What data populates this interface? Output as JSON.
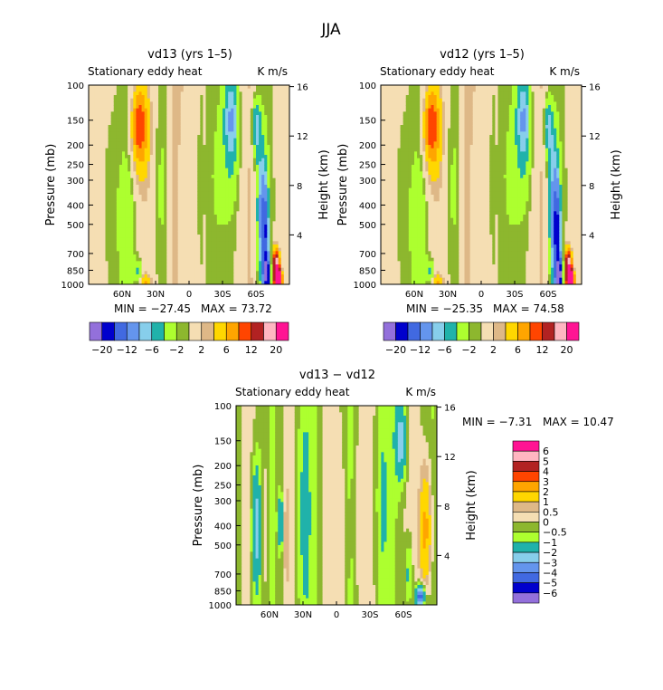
{
  "figure_title": "JJA",
  "colors": {
    "cmap": [
      "#9370DB",
      "#0000CD",
      "#4169E1",
      "#6495ED",
      "#87CEEB",
      "#20B2AA",
      "#ADFF2F",
      "#8DB72E",
      "#F5DEB3",
      "#DEB887",
      "#FFD700",
      "#FFA500",
      "#FF4500",
      "#B22222",
      "#FFB6C1",
      "#FF1493"
    ],
    "diff_cmap": [
      "#9370DB",
      "#0000CD",
      "#4169E1",
      "#6495ED",
      "#87CEEB",
      "#20B2AA",
      "#ADFF2F",
      "#8DB72E",
      "#F5DEB3",
      "#DEB887",
      "#FFD700",
      "#FFA500",
      "#FF4500",
      "#B22222",
      "#FFB6C1",
      "#FF1493"
    ]
  },
  "chart_data": [
    {
      "type": "heatmap",
      "title": "vd13 (yrs 1–5)",
      "subtitle_left": "Stationary eddy heat",
      "subtitle_right": "K m/s",
      "ylabel": "Pressure (mb)",
      "ylabel_right": "Height (km)",
      "pressure_ticks": [
        100,
        150,
        200,
        250,
        300,
        400,
        500,
        700,
        850,
        1000
      ],
      "height_ticks": [
        4,
        8,
        12,
        16
      ],
      "x_ticks": [
        [
          "60N",
          60
        ],
        [
          "30N",
          30
        ],
        [
          "0",
          0
        ],
        [
          "30S",
          -30
        ],
        [
          "60S",
          -60
        ]
      ],
      "xlim": [
        90,
        -90
      ],
      "min_text": "MIN = −27.45",
      "max_text": "MAX =  73.72",
      "min": -27.45,
      "max": 73.72,
      "levels": [
        -20,
        -16,
        -12,
        -8,
        -6,
        -4,
        -2,
        -1,
        1,
        2,
        4,
        6,
        8,
        12,
        16,
        20
      ],
      "colorbar_labels": [
        [
          "−20",
          1
        ],
        [
          "−12",
          3
        ],
        [
          "−6",
          5
        ],
        [
          "−2",
          7
        ],
        [
          "2",
          9
        ],
        [
          "6",
          11
        ],
        [
          "12",
          13
        ],
        [
          "20",
          15
        ]
      ],
      "features": [
        {
          "lat": 45,
          "p": 160,
          "v": 6,
          "rl": 7,
          "rp": 0.45
        },
        {
          "lat": 45,
          "p": 180,
          "v": 2.5,
          "rl": 12,
          "rp": 0.75
        },
        {
          "lat": 70,
          "p": 400,
          "v": -2,
          "rl": 8,
          "rp": 1.4
        },
        {
          "lat": 55,
          "p": 550,
          "v": -2,
          "rl": 6,
          "rp": 1.2
        },
        {
          "lat": 25,
          "p": 300,
          "v": -1.8,
          "rl": 7,
          "rp": 1.4
        },
        {
          "lat": 5,
          "p": 500,
          "v": -1.5,
          "rl": 6,
          "rp": 1.6
        },
        {
          "lat": -25,
          "p": 300,
          "v": -1.8,
          "rl": 9,
          "rp": 1.6
        },
        {
          "lat": -38,
          "p": 200,
          "v": -3,
          "rl": 8,
          "rp": 0.7
        },
        {
          "lat": -38,
          "p": 140,
          "v": -5,
          "rl": 6,
          "rp": 0.45
        },
        {
          "lat": -60,
          "p": 160,
          "v": -7,
          "rl": 4,
          "rp": 0.35
        },
        {
          "lat": -65,
          "p": 420,
          "v": -8,
          "rl": 5,
          "rp": 0.9
        },
        {
          "lat": -68,
          "p": 550,
          "v": -12,
          "rl": 3,
          "rp": 0.5
        },
        {
          "lat": -70,
          "p": 900,
          "v": -20,
          "rl": 3,
          "rp": 0.2
        },
        {
          "lat": -78,
          "p": 800,
          "v": 15,
          "rl": 3,
          "rp": 0.2
        },
        {
          "lat": -80,
          "p": 950,
          "v": 25,
          "rl": 3,
          "rp": 0.12
        },
        {
          "lat": 40,
          "p": 980,
          "v": 4,
          "rl": 6,
          "rp": 0.1
        },
        {
          "lat": 45,
          "p": 870,
          "v": -5,
          "rl": 3,
          "rp": 0.12
        }
      ]
    },
    {
      "type": "heatmap",
      "title": "vd12 (yrs 1–5)",
      "subtitle_left": "Stationary eddy heat",
      "subtitle_right": "K m/s",
      "ylabel": "Pressure (mb)",
      "ylabel_right": "Height (km)",
      "pressure_ticks": [
        100,
        150,
        200,
        250,
        300,
        400,
        500,
        700,
        850,
        1000
      ],
      "height_ticks": [
        4,
        8,
        12,
        16
      ],
      "x_ticks": [
        [
          "60N",
          60
        ],
        [
          "30N",
          30
        ],
        [
          "0",
          0
        ],
        [
          "30S",
          -30
        ],
        [
          "60S",
          -60
        ]
      ],
      "xlim": [
        90,
        -90
      ],
      "min_text": "MIN = −25.35",
      "max_text": "MAX =  74.58",
      "min": -25.35,
      "max": 74.58,
      "levels": [
        -20,
        -16,
        -12,
        -8,
        -6,
        -4,
        -2,
        -1,
        1,
        2,
        4,
        6,
        8,
        12,
        16,
        20
      ],
      "colorbar_labels": [
        [
          "−20",
          1
        ],
        [
          "−12",
          3
        ],
        [
          "−6",
          5
        ],
        [
          "−2",
          7
        ],
        [
          "2",
          9
        ],
        [
          "6",
          11
        ],
        [
          "12",
          13
        ],
        [
          "20",
          15
        ]
      ],
      "features": [
        {
          "lat": 45,
          "p": 160,
          "v": 6,
          "rl": 7,
          "rp": 0.45
        },
        {
          "lat": 45,
          "p": 180,
          "v": 2.5,
          "rl": 12,
          "rp": 0.75
        },
        {
          "lat": 70,
          "p": 400,
          "v": -2,
          "rl": 8,
          "rp": 1.4
        },
        {
          "lat": 55,
          "p": 550,
          "v": -2,
          "rl": 6,
          "rp": 1.2
        },
        {
          "lat": 25,
          "p": 300,
          "v": -1.8,
          "rl": 7,
          "rp": 1.4
        },
        {
          "lat": 5,
          "p": 500,
          "v": -1.5,
          "rl": 6,
          "rp": 1.6
        },
        {
          "lat": -25,
          "p": 300,
          "v": -1.8,
          "rl": 9,
          "rp": 1.6
        },
        {
          "lat": -38,
          "p": 200,
          "v": -3,
          "rl": 8,
          "rp": 0.7
        },
        {
          "lat": -38,
          "p": 140,
          "v": -5,
          "rl": 6,
          "rp": 0.45
        },
        {
          "lat": -60,
          "p": 160,
          "v": -7,
          "rl": 4,
          "rp": 0.35
        },
        {
          "lat": -65,
          "p": 420,
          "v": -9,
          "rl": 5,
          "rp": 0.9
        },
        {
          "lat": -68,
          "p": 550,
          "v": -13,
          "rl": 3,
          "rp": 0.5
        },
        {
          "lat": -70,
          "p": 900,
          "v": -20,
          "rl": 3,
          "rp": 0.2
        },
        {
          "lat": -78,
          "p": 800,
          "v": 15,
          "rl": 3,
          "rp": 0.2
        },
        {
          "lat": -80,
          "p": 950,
          "v": 25,
          "rl": 3,
          "rp": 0.12
        },
        {
          "lat": 40,
          "p": 980,
          "v": 4,
          "rl": 6,
          "rp": 0.1
        },
        {
          "lat": 45,
          "p": 870,
          "v": -5,
          "rl": 3,
          "rp": 0.12
        }
      ]
    },
    {
      "type": "heatmap",
      "title": "vd13 − vd12",
      "subtitle_left": "Stationary eddy heat",
      "subtitle_right": "K m/s",
      "ylabel": "Pressure (mb)",
      "ylabel_right": "Height (km)",
      "pressure_ticks": [
        100,
        150,
        200,
        250,
        300,
        400,
        500,
        700,
        850,
        1000
      ],
      "height_ticks": [
        4,
        8,
        12,
        16
      ],
      "x_ticks": [
        [
          "60N",
          60
        ],
        [
          "30N",
          30
        ],
        [
          "0",
          0
        ],
        [
          "30S",
          -30
        ],
        [
          "60S",
          -60
        ]
      ],
      "xlim": [
        90,
        -90
      ],
      "min_text": "MIN =   −7.31",
      "max_text": "MAX =  10.47",
      "min": -7.31,
      "max": 10.47,
      "levels": [
        -6,
        -5,
        -4,
        -3,
        -2,
        -1,
        -0.5,
        0,
        0.5,
        1,
        2,
        3,
        4,
        5,
        6
      ],
      "colorbar_labels": [
        "6",
        "5",
        "4",
        "3",
        "2",
        "1",
        "0.5",
        "0",
        "−0.5",
        "−1",
        "−2",
        "−3",
        "−4",
        "−5",
        "−6"
      ],
      "features": [
        {
          "lat": 72,
          "p": 420,
          "v": -2.5,
          "rl": 4,
          "rp": 0.8
        },
        {
          "lat": 63,
          "p": 400,
          "v": 0.8,
          "rl": 3,
          "rp": 1.2
        },
        {
          "lat": 50,
          "p": 380,
          "v": -2.5,
          "rl": 2,
          "rp": 0.3
        },
        {
          "lat": 45,
          "p": 450,
          "v": 0.8,
          "rl": 2,
          "rp": 0.7
        },
        {
          "lat": 30,
          "p": 350,
          "v": -0.8,
          "rl": 7,
          "rp": 1.5
        },
        {
          "lat": -5,
          "p": 500,
          "v": 0.6,
          "rl": 5,
          "rp": 1.6
        },
        {
          "lat": -20,
          "p": 350,
          "v": 0.6,
          "rl": 5,
          "rp": 1.4
        },
        {
          "lat": -40,
          "p": 300,
          "v": -0.8,
          "rl": 6,
          "rp": 1.5
        },
        {
          "lat": -58,
          "p": 150,
          "v": -2.5,
          "rl": 5,
          "rp": 0.45
        },
        {
          "lat": -80,
          "p": 420,
          "v": 2.2,
          "rl": 5,
          "rp": 0.7
        },
        {
          "lat": -80,
          "p": 400,
          "v": 0.6,
          "rl": 8,
          "rp": 1.2
        },
        {
          "lat": -75,
          "p": 900,
          "v": -5,
          "rl": 4,
          "rp": 0.12
        },
        {
          "lat": -65,
          "p": 700,
          "v": -1.5,
          "rl": 3,
          "rp": 0.4
        }
      ]
    }
  ]
}
